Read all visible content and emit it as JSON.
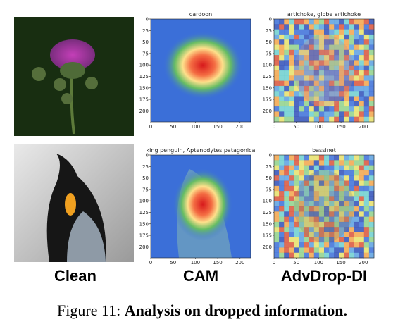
{
  "figure": {
    "rows": [
      {
        "cam_title": "cardoon",
        "adv_title": "artichoke, globe artichoke"
      },
      {
        "cam_title": "king penguin, Aptenodytes patagonica",
        "adv_title": "bassinet"
      }
    ],
    "xticks": [
      "0",
      "50",
      "100",
      "150",
      "200"
    ],
    "yticks": [
      "0",
      "25",
      "50",
      "75",
      "100",
      "125",
      "150",
      "175",
      "200"
    ],
    "labels": [
      "Clean",
      "CAM",
      "AdvDrop-DI"
    ],
    "caption": {
      "prefix": "Figure 11:",
      "bold": "Analysis on dropped information."
    }
  }
}
